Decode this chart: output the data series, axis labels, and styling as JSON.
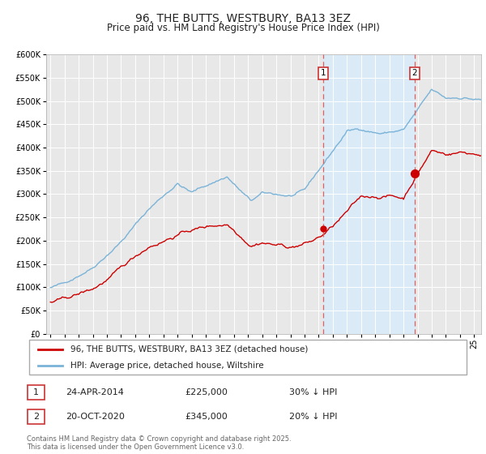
{
  "title": "96, THE BUTTS, WESTBURY, BA13 3EZ",
  "subtitle": "Price paid vs. HM Land Registry's House Price Index (HPI)",
  "title_fontsize": 10,
  "subtitle_fontsize": 8.5,
  "ylim": [
    0,
    600000
  ],
  "yticks": [
    0,
    50000,
    100000,
    150000,
    200000,
    250000,
    300000,
    350000,
    400000,
    450000,
    500000,
    550000,
    600000
  ],
  "xlim_start": 1994.7,
  "xlim_end": 2025.5,
  "hpi_color": "#7ab3d8",
  "hpi_fill_color": "#daeaf7",
  "price_color": "#cc0000",
  "marker_color": "#cc0000",
  "dashed_line_color": "#e06060",
  "event1_x": 2014.31,
  "event1_label": "1",
  "event1_price": 225000,
  "event1_date": "24-APR-2014",
  "event1_hpi_pct": "30% ↓ HPI",
  "event2_x": 2020.8,
  "event2_label": "2",
  "event2_price": 345000,
  "event2_date": "20-OCT-2020",
  "event2_hpi_pct": "20% ↓ HPI",
  "legend_label_red": "96, THE BUTTS, WESTBURY, BA13 3EZ (detached house)",
  "legend_label_blue": "HPI: Average price, detached house, Wiltshire",
  "footnote": "Contains HM Land Registry data © Crown copyright and database right 2025.\nThis data is licensed under the Open Government Licence v3.0.",
  "background_color": "#ffffff",
  "plot_bg_color": "#e8e8e8",
  "grid_color": "#ffffff"
}
